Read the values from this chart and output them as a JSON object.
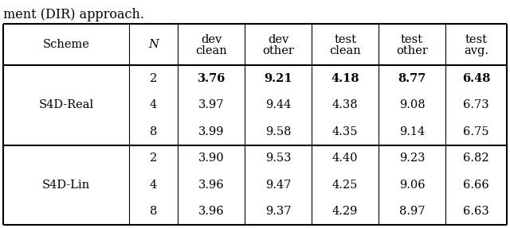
{
  "caption": "ment (DIR) approach.",
  "col_headers_line1": [
    "Scheme",
    "N",
    "dev",
    "dev",
    "test",
    "test",
    "test"
  ],
  "col_headers_line2": [
    "",
    "",
    "clean",
    "other",
    "clean",
    "other",
    "avg."
  ],
  "rows": [
    {
      "scheme": "S4D-Real",
      "n": "2",
      "vals": [
        "3.76",
        "9.21",
        "4.18",
        "8.77",
        "6.48"
      ],
      "bold": true
    },
    {
      "scheme": "",
      "n": "4",
      "vals": [
        "3.97",
        "9.44",
        "4.38",
        "9.08",
        "6.73"
      ],
      "bold": false
    },
    {
      "scheme": "",
      "n": "8",
      "vals": [
        "3.99",
        "9.58",
        "4.35",
        "9.14",
        "6.75"
      ],
      "bold": false
    },
    {
      "scheme": "S4D-Lin",
      "n": "2",
      "vals": [
        "3.90",
        "9.53",
        "4.40",
        "9.23",
        "6.82"
      ],
      "bold": false
    },
    {
      "scheme": "",
      "n": "4",
      "vals": [
        "3.96",
        "9.47",
        "4.25",
        "9.06",
        "6.66"
      ],
      "bold": false
    },
    {
      "scheme": "",
      "n": "8",
      "vals": [
        "3.96",
        "9.37",
        "4.29",
        "8.97",
        "6.63"
      ],
      "bold": false
    }
  ],
  "scheme_groups": [
    {
      "label": "S4D-Real",
      "start": 0,
      "end": 2
    },
    {
      "label": "S4D-Lin",
      "start": 3,
      "end": 5
    }
  ],
  "background_color": "#ffffff",
  "line_color": "#000000",
  "text_color": "#000000",
  "font_size": 10.5,
  "caption_font_size": 11.5,
  "caption_text": "ment (DIR) approach.",
  "fig_width": 6.4,
  "fig_height": 2.87,
  "dpi": 100
}
